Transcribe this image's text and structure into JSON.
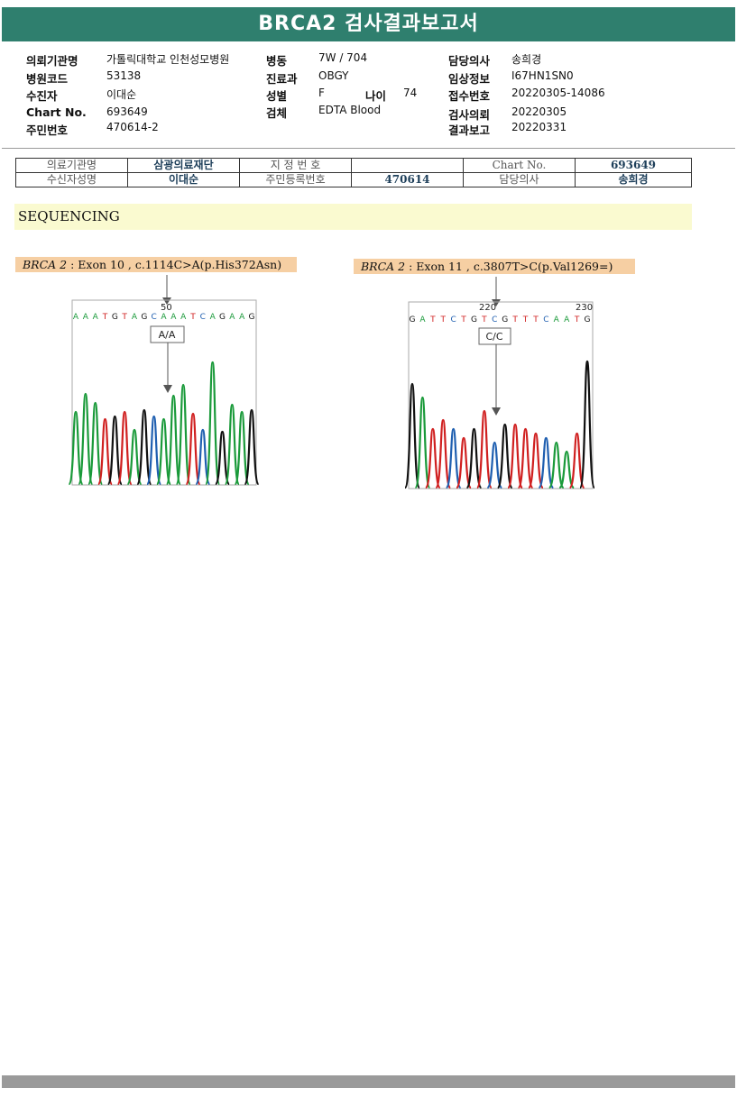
{
  "title": "BRCA2 검사결과보고서",
  "header": {
    "col1": [
      {
        "label": "의뢰기관명",
        "value": "가톨릭대학교 인천성모병원"
      },
      {
        "label": "병원코드",
        "value": "53138"
      },
      {
        "label": "수진자",
        "value": "이대순"
      },
      {
        "label": "Chart No.",
        "value": "693649"
      },
      {
        "label": "주민번호",
        "value": "470614-2"
      }
    ],
    "col2": [
      {
        "label": "병동",
        "value": "7W / 704"
      },
      {
        "label": "진료과",
        "value": "OBGY"
      },
      {
        "label": "성별",
        "value": "F"
      },
      {
        "label": "검체",
        "value": "EDTA Blood"
      }
    ],
    "age": {
      "label": "나이",
      "value": "74"
    },
    "col3": [
      {
        "label": "담당의사",
        "value": "송희경"
      },
      {
        "label": "임상정보",
        "value": "I67HN1SN0"
      },
      {
        "label": "접수번호",
        "value": "20220305-14086"
      },
      {
        "label": "검사의뢰",
        "value": "20220305"
      },
      {
        "label": "결과보고",
        "value": "20220331"
      }
    ]
  },
  "info_table": {
    "row1": [
      "의료기관명",
      "삼광의료재단",
      "지 정 번 호",
      "",
      "Chart No.",
      "693649"
    ],
    "row2": [
      "수신자성명",
      "이대순",
      "주민등록번호",
      "470614",
      "담당의사",
      "송희경"
    ]
  },
  "section": "SEQUENCING",
  "variants": [
    {
      "gene": "BRCA 2",
      "detail": " : Exon 10 , c.1114C>A(p.His372Asn)",
      "position": "50",
      "sequence": "AAATGTAGCAAATCAGAAG",
      "genotype": "A/A"
    },
    {
      "gene": "BRCA 2",
      "detail": " : Exon 11 , c.3807T>C(p.Val1269=)",
      "position": "220",
      "position2": "230",
      "sequence": "GATTCTGTCGTTTCAATG",
      "genotype": "C/C"
    }
  ]
}
